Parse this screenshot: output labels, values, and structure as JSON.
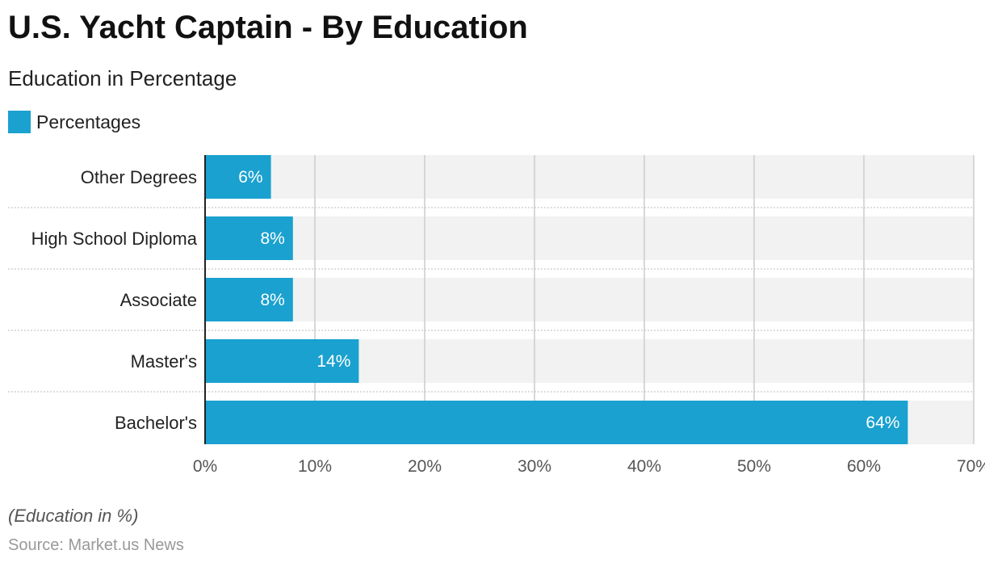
{
  "title": "U.S. Yacht Captain - By Education",
  "subtitle": "Education in Percentage",
  "note": "(Education in %)",
  "source": "Source: Market.us News",
  "colors": {
    "bar": "#1aa1cf",
    "band": "#f2f2f2",
    "grid": "#cccccc"
  },
  "chart_data": {
    "type": "bar",
    "orientation": "horizontal",
    "title": "U.S. Yacht Captain - By Education",
    "subtitle": "Education in Percentage",
    "legend": [
      "Percentages"
    ],
    "categories": [
      "Other Degrees",
      "High School Diploma",
      "Associate",
      "Master's",
      "Bachelor's"
    ],
    "values": [
      6,
      8,
      8,
      14,
      64
    ],
    "value_labels": [
      "6%",
      "8%",
      "8%",
      "14%",
      "64%"
    ],
    "xlim": [
      0,
      70
    ],
    "xticks": [
      "0%",
      "10%",
      "20%",
      "30%",
      "40%",
      "50%",
      "60%",
      "70%"
    ],
    "grid": true
  }
}
